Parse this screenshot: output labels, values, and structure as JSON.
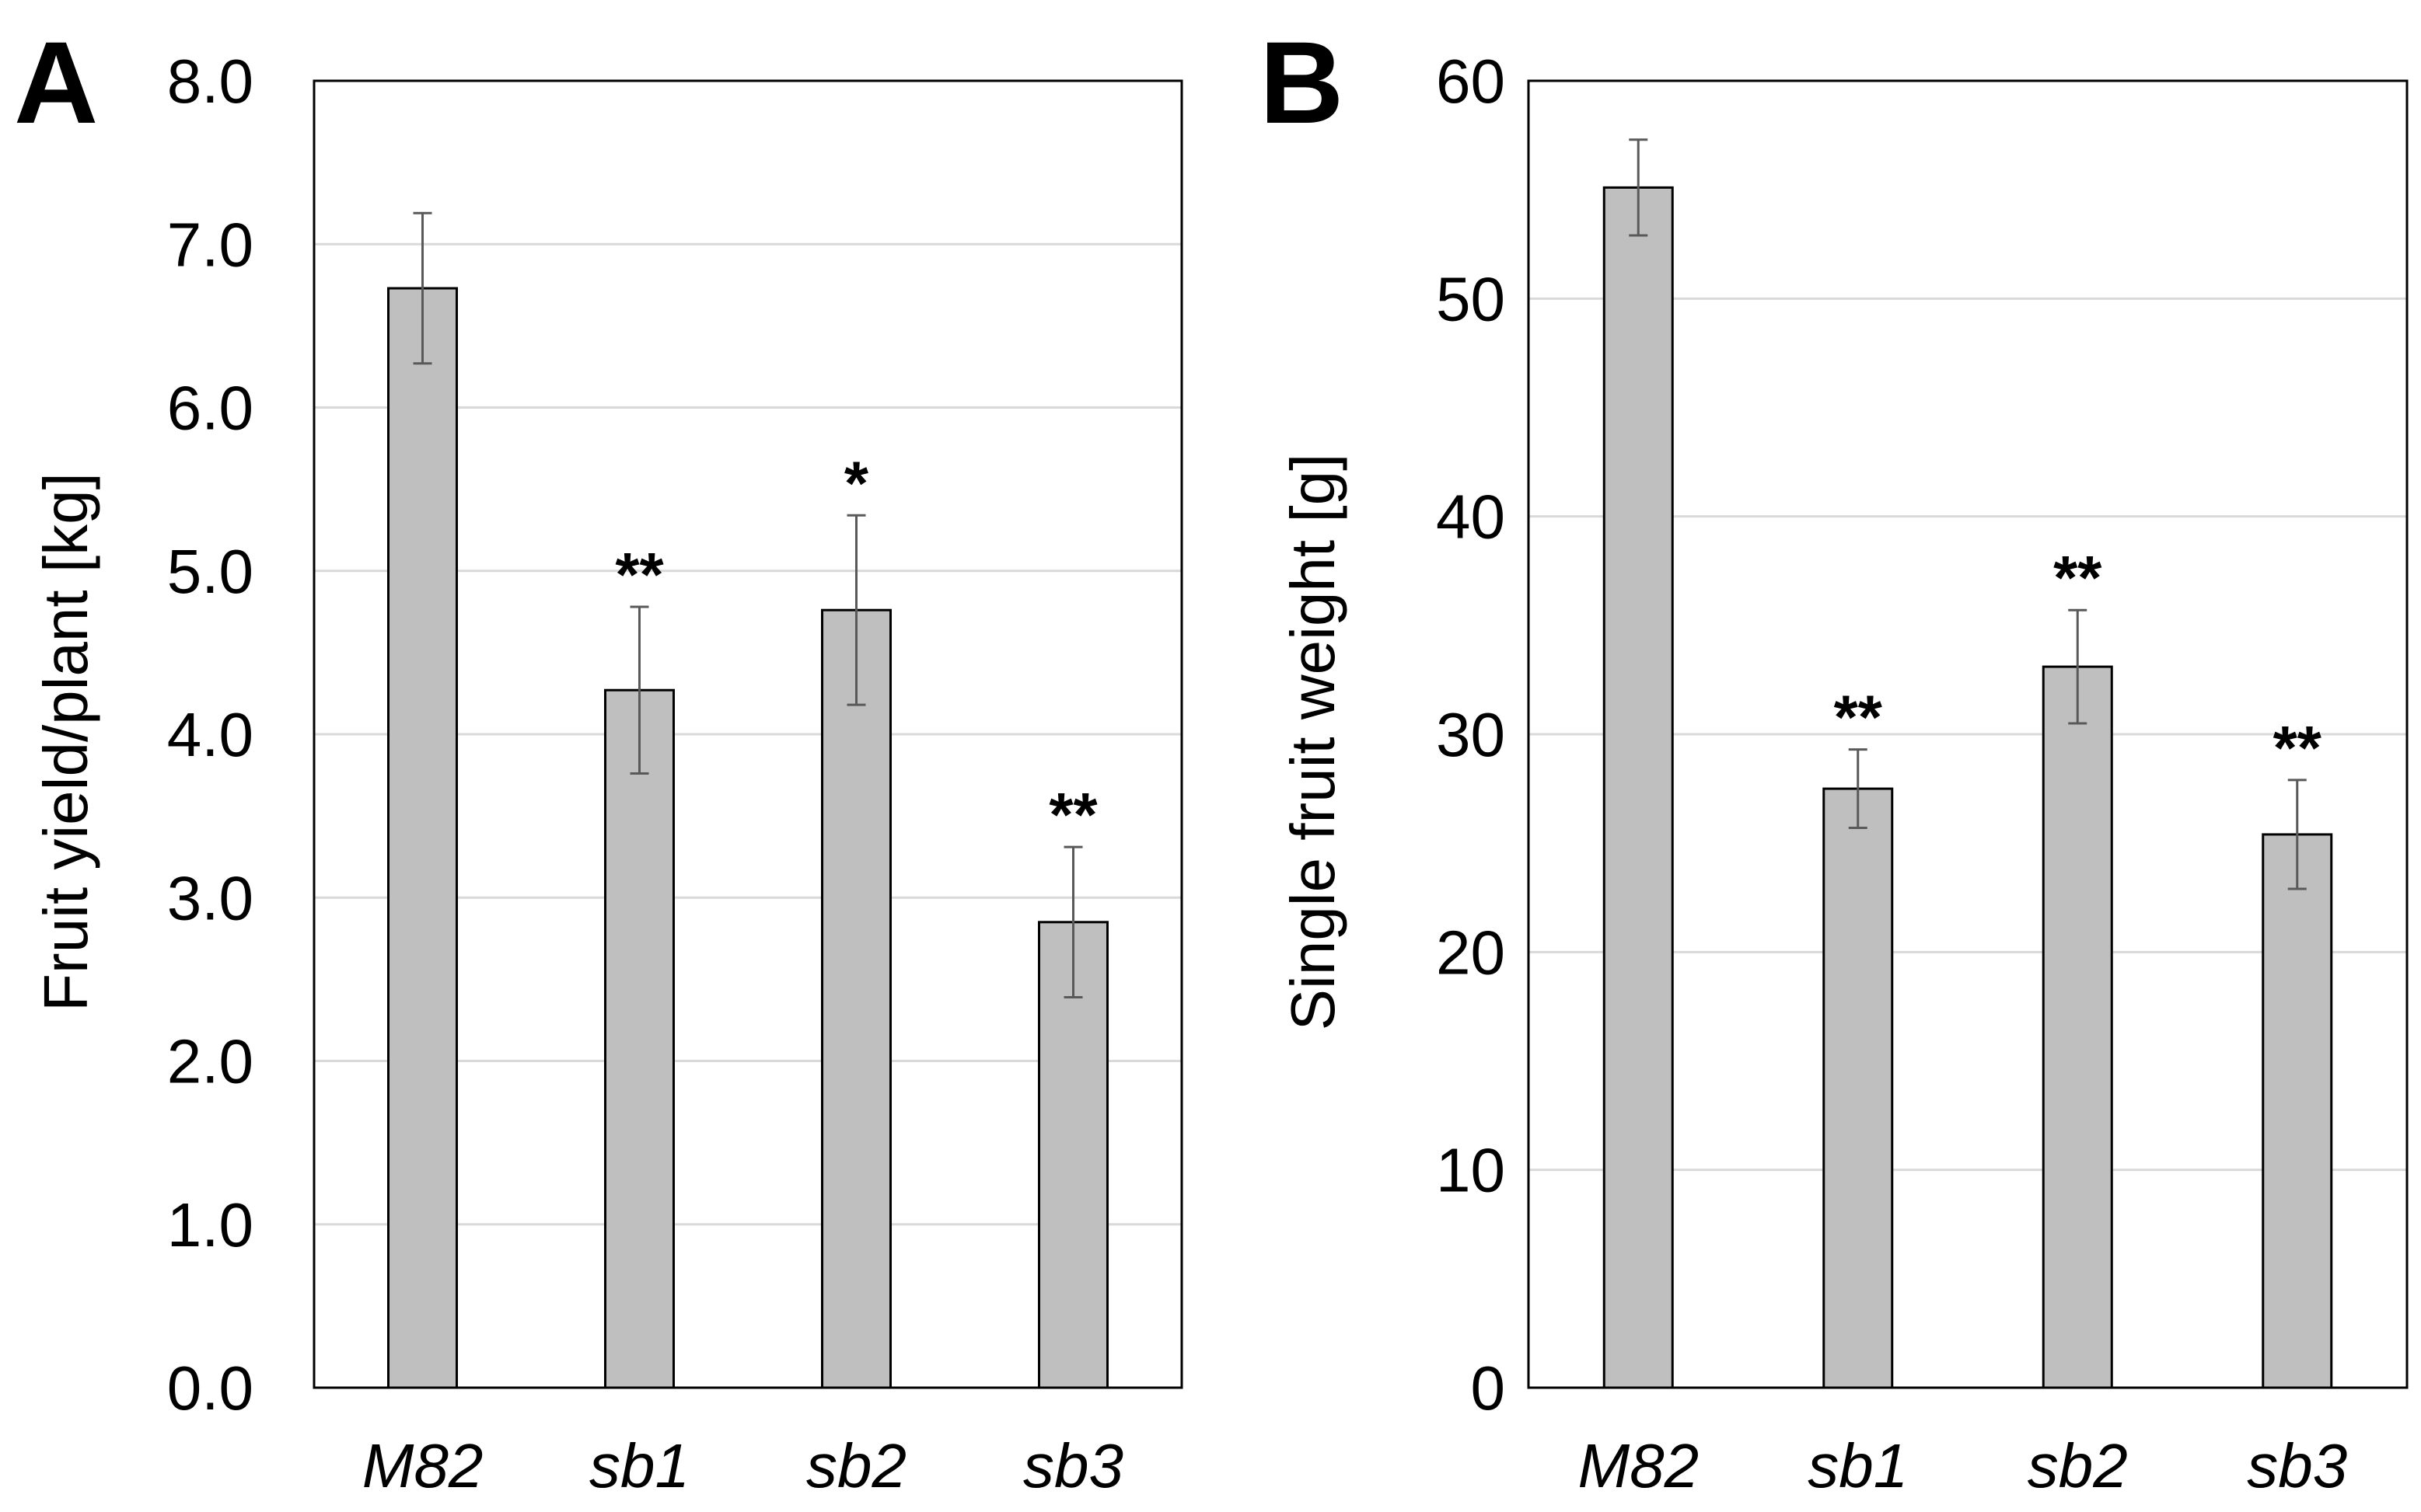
{
  "figure": {
    "panels": [
      "A",
      "B"
    ]
  },
  "chart_data": [
    {
      "panel": "A",
      "type": "bar",
      "categories": [
        "M82",
        "sb1",
        "sb2",
        "sb3"
      ],
      "values": [
        6.73,
        4.27,
        4.76,
        2.85
      ],
      "errors": [
        0.46,
        0.51,
        0.58,
        0.46
      ],
      "significance": [
        "",
        "**",
        "*",
        "**"
      ],
      "title": "",
      "xlabel": "",
      "ylabel": "Fruit yield/plant [kg]",
      "ylim": [
        0,
        8
      ],
      "yticks": [
        0,
        1,
        2,
        3,
        4,
        5,
        6,
        7,
        8
      ],
      "ytick_labels": [
        "0.0",
        "1.0",
        "2.0",
        "3.0",
        "4.0",
        "5.0",
        "6.0",
        "7.0",
        "8.0"
      ],
      "grid": true,
      "bar_color": "#bfbfbf",
      "grid_color": "#d9d9d9",
      "error_color": "#595959"
    },
    {
      "panel": "B",
      "type": "bar",
      "categories": [
        "M82",
        "sb1",
        "sb2",
        "sb3"
      ],
      "values": [
        55.1,
        27.5,
        33.1,
        25.4
      ],
      "errors": [
        2.2,
        1.8,
        2.6,
        2.5
      ],
      "significance": [
        "",
        "**",
        "**",
        "**"
      ],
      "title": "",
      "xlabel": "",
      "ylabel": "Single fruit weight  [g]",
      "ylim": [
        0,
        60
      ],
      "yticks": [
        0,
        10,
        20,
        30,
        40,
        50,
        60
      ],
      "ytick_labels": [
        "0",
        "10",
        "20",
        "30",
        "40",
        "50",
        "60"
      ],
      "grid": true,
      "bar_color": "#bfbfbf",
      "grid_color": "#d9d9d9",
      "error_color": "#595959"
    }
  ]
}
